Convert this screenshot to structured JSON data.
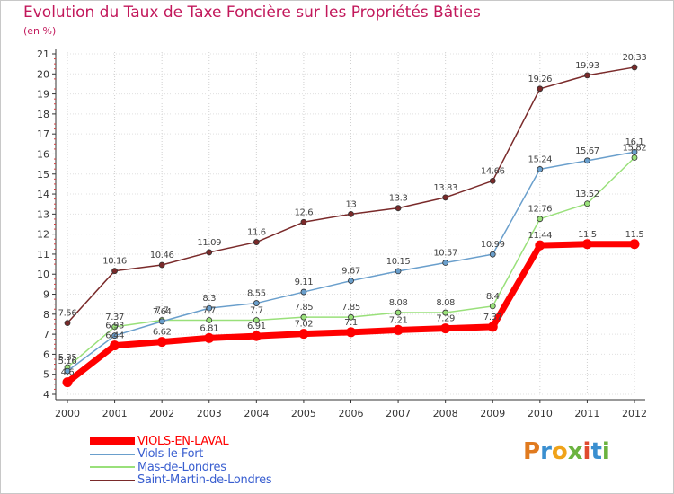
{
  "chart_data": {
    "type": "line",
    "title": "Evolution du Taux de Taxe Foncière sur les Propriétés Bâties",
    "subtitle": "(en %)",
    "xlabel": "",
    "ylabel": "",
    "ylim": [
      4,
      21
    ],
    "yticks": [
      "4",
      "5",
      "6",
      "7",
      "8",
      "9",
      "10",
      "11",
      "12",
      "13",
      "14",
      "15",
      "16",
      "17",
      "18",
      "19",
      "20",
      "21"
    ],
    "categories": [
      "2000",
      "2001",
      "2002",
      "2003",
      "2004",
      "2005",
      "2006",
      "2007",
      "2008",
      "2009",
      "2010",
      "2011",
      "2012"
    ],
    "series": [
      {
        "name": "VIOLS-EN-LAVAL",
        "color": "#ff0000",
        "values": [
          4.6,
          6.44,
          6.62,
          6.81,
          6.91,
          7.02,
          7.1,
          7.21,
          7.29,
          7.37,
          11.44,
          11.5,
          11.5
        ],
        "labels": [
          "4.6",
          "6.44",
          "6.62",
          "6.81",
          "6.91",
          "7.02",
          "7.1",
          "7.21",
          "7.29",
          "7.37",
          "11.44",
          "11.5",
          "11.5"
        ]
      },
      {
        "name": "Viols-le-Fort",
        "color": "#6a9fcc",
        "values": [
          5.16,
          6.93,
          7.64,
          8.3,
          8.55,
          9.11,
          9.67,
          10.15,
          10.57,
          10.99,
          15.24,
          15.67,
          16.1
        ],
        "labels": [
          "5.16",
          "6.93",
          "7.64",
          "8.3",
          "8.55",
          "9.11",
          "9.67",
          "10.15",
          "10.57",
          "10.99",
          "15.24",
          "15.67",
          "16.1"
        ]
      },
      {
        "name": "Mas-de-Londres",
        "color": "#99e07a",
        "values": [
          5.35,
          7.37,
          7.7,
          7.7,
          7.7,
          7.85,
          7.85,
          8.08,
          8.08,
          8.4,
          12.76,
          13.52,
          15.82
        ],
        "labels": [
          "5.35",
          "7.37",
          "7.7",
          "7.7",
          "7.7",
          "7.85",
          "7.85",
          "8.08",
          "8.08",
          "8.4",
          "12.76",
          "13.52",
          "15.82"
        ]
      },
      {
        "name": "Saint-Martin-de-Londres",
        "color": "#7a2a2a",
        "values": [
          7.56,
          10.16,
          10.46,
          11.09,
          11.6,
          12.6,
          13,
          13.3,
          13.83,
          14.66,
          19.26,
          19.93,
          20.33
        ],
        "labels": [
          "7.56",
          "10.16",
          "10.46",
          "11.09",
          "11.6",
          "12.6",
          "13",
          "13.3",
          "13.83",
          "14.66",
          "19.26",
          "19.93",
          "20.33"
        ]
      }
    ],
    "legend": [
      {
        "label": "VIOLS-EN-LAVAL",
        "color": "#ff0000"
      },
      {
        "label": "Viols-le-Fort",
        "color": "#6a9fcc"
      },
      {
        "label": "Mas-de-Londres",
        "color": "#99e07a"
      },
      {
        "label": "Saint-Martin-de-Londres",
        "color": "#7a2a2a"
      }
    ]
  },
  "logo": {
    "letters": [
      "P",
      "r",
      "o",
      "x",
      "i",
      "t",
      "i"
    ]
  }
}
